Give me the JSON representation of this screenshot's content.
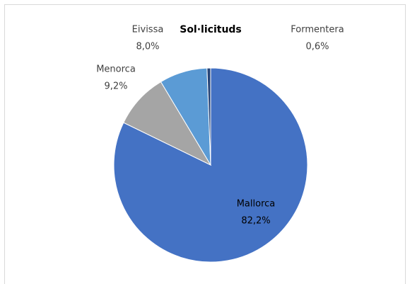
{
  "chart_data": {
    "type": "pie",
    "title": "Sol·licituds",
    "categories": [
      "Mallorca",
      "Menorca",
      "Eivissa",
      "Formentera"
    ],
    "values": [
      82.2,
      9.2,
      8.0,
      0.6
    ],
    "value_labels": [
      "82,2%",
      "9,2%",
      "8,0%",
      "0,6%"
    ],
    "colors": [
      "#4472c4",
      "#a5a5a5",
      "#5b9bd5",
      "#264478"
    ]
  }
}
